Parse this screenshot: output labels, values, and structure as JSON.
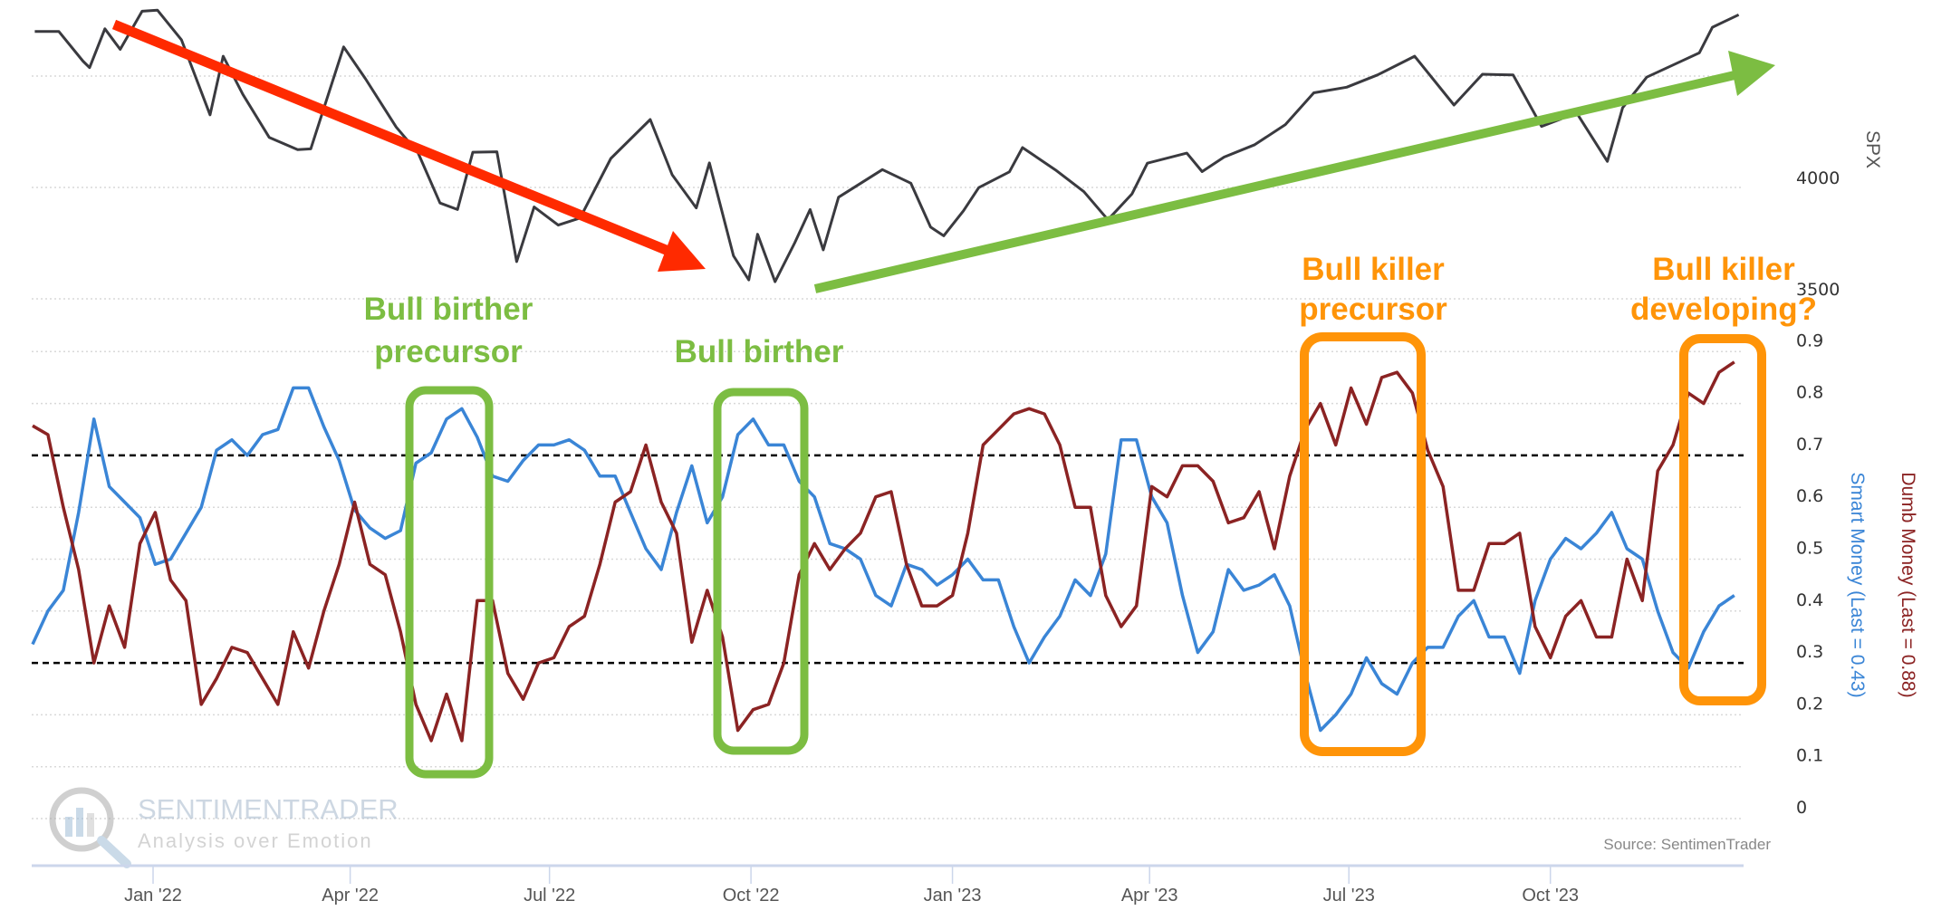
{
  "chart_data": [
    {
      "type": "line",
      "panel": "top",
      "ylabel": "SPX",
      "y_ticks": [
        {
          "value": 4000,
          "label": "4000"
        },
        {
          "value": 3500,
          "label": "3500"
        }
      ],
      "gridlines": [
        3500,
        4000,
        4500
      ],
      "series": [
        {
          "color": "#3a3a3f",
          "points": [
            [
              "2021-11-08",
              4700
            ],
            [
              "2021-11-19",
              4700
            ],
            [
              "2021-11-30",
              4567
            ],
            [
              "2021-12-03",
              4538
            ],
            [
              "2021-12-10",
              4712
            ],
            [
              "2021-12-17",
              4620
            ],
            [
              "2021-12-27",
              4791
            ],
            [
              "2022-01-03",
              4796
            ],
            [
              "2022-01-14",
              4662
            ],
            [
              "2022-01-27",
              4326
            ],
            [
              "2022-02-02",
              4589
            ],
            [
              "2022-02-11",
              4418
            ],
            [
              "2022-02-23",
              4225
            ],
            [
              "2022-03-08",
              4170
            ],
            [
              "2022-03-14",
              4173
            ],
            [
              "2022-03-29",
              4631
            ],
            [
              "2022-04-08",
              4488
            ],
            [
              "2022-04-22",
              4271
            ],
            [
              "2022-05-02",
              4155
            ],
            [
              "2022-05-12",
              3930
            ],
            [
              "2022-05-20",
              3901
            ],
            [
              "2022-05-27",
              4158
            ],
            [
              "2022-06-07",
              4160
            ],
            [
              "2022-06-16",
              3667
            ],
            [
              "2022-06-24",
              3912
            ],
            [
              "2022-07-05",
              3831
            ],
            [
              "2022-07-15",
              3863
            ],
            [
              "2022-07-29",
              4130
            ],
            [
              "2022-08-16",
              4305
            ],
            [
              "2022-08-26",
              4057
            ],
            [
              "2022-09-06",
              3908
            ],
            [
              "2022-09-12",
              4110
            ],
            [
              "2022-09-23",
              3693
            ],
            [
              "2022-09-30",
              3585
            ],
            [
              "2022-10-04",
              3790
            ],
            [
              "2022-10-12",
              3577
            ],
            [
              "2022-10-21",
              3752
            ],
            [
              "2022-10-28",
              3901
            ],
            [
              "2022-11-03",
              3720
            ],
            [
              "2022-11-10",
              3956
            ],
            [
              "2022-11-30",
              4080
            ],
            [
              "2022-12-13",
              4019
            ],
            [
              "2022-12-22",
              3822
            ],
            [
              "2022-12-28",
              3783
            ],
            [
              "2023-01-06",
              3895
            ],
            [
              "2023-01-13",
              3999
            ],
            [
              "2023-01-27",
              4070
            ],
            [
              "2023-02-02",
              4179
            ],
            [
              "2023-02-17",
              4079
            ],
            [
              "2023-03-02",
              3981
            ],
            [
              "2023-03-13",
              3855
            ],
            [
              "2023-03-24",
              3971
            ],
            [
              "2023-03-31",
              4109
            ],
            [
              "2023-04-18",
              4154
            ],
            [
              "2023-04-25",
              4071
            ],
            [
              "2023-05-05",
              4136
            ],
            [
              "2023-05-19",
              4192
            ],
            [
              "2023-06-02",
              4282
            ],
            [
              "2023-06-15",
              4425
            ],
            [
              "2023-06-30",
              4450
            ],
            [
              "2023-07-14",
              4505
            ],
            [
              "2023-07-31",
              4589
            ],
            [
              "2023-08-18",
              4370
            ],
            [
              "2023-08-31",
              4508
            ],
            [
              "2023-09-14",
              4505
            ],
            [
              "2023-09-27",
              4274
            ],
            [
              "2023-10-06",
              4308
            ],
            [
              "2023-10-12",
              4350
            ],
            [
              "2023-10-27",
              4117
            ],
            [
              "2023-11-03",
              4358
            ],
            [
              "2023-11-14",
              4495
            ],
            [
              "2023-11-30",
              4568
            ],
            [
              "2023-12-08",
              4604
            ],
            [
              "2023-12-14",
              4719
            ],
            [
              "2023-12-26",
              4775
            ]
          ]
        }
      ]
    },
    {
      "type": "line",
      "panel": "bottom",
      "y_ticks": [
        "0",
        "0.1",
        "0.2",
        "0.3",
        "0.4",
        "0.5",
        "0.6",
        "0.7",
        "0.8",
        "0.9"
      ],
      "ylim": [
        0,
        0.9
      ],
      "threshold_lines": [
        0.7,
        0.3
      ],
      "series": [
        {
          "name": "Smart Money (Last = 0.43)",
          "color": "#3a85d6",
          "start": "2021-11-07",
          "interval_days": 7,
          "values": [
            0.336,
            0.4,
            0.44,
            0.59,
            0.77,
            0.64,
            0.61,
            0.58,
            0.49,
            0.5,
            0.55,
            0.6,
            0.71,
            0.73,
            0.7,
            0.74,
            0.75,
            0.83,
            0.83,
            0.755,
            0.69,
            0.595,
            0.56,
            0.54,
            0.555,
            0.685,
            0.705,
            0.77,
            0.79,
            0.735,
            0.66,
            0.65,
            0.69,
            0.72,
            0.72,
            0.73,
            0.71,
            0.66,
            0.66,
            0.59,
            0.52,
            0.48,
            0.59,
            0.68,
            0.57,
            0.62,
            0.74,
            0.77,
            0.72,
            0.72,
            0.65,
            0.62,
            0.53,
            0.52,
            0.5,
            0.43,
            0.41,
            0.49,
            0.48,
            0.45,
            0.47,
            0.5,
            0.46,
            0.46,
            0.37,
            0.3,
            0.35,
            0.39,
            0.46,
            0.43,
            0.51,
            0.73,
            0.73,
            0.62,
            0.57,
            0.43,
            0.32,
            0.36,
            0.48,
            0.44,
            0.45,
            0.47,
            0.41,
            0.28,
            0.17,
            0.2,
            0.24,
            0.31,
            0.26,
            0.24,
            0.3,
            0.33,
            0.33,
            0.39,
            0.42,
            0.35,
            0.35,
            0.28,
            0.42,
            0.5,
            0.54,
            0.52,
            0.55,
            0.59,
            0.52,
            0.5,
            0.4,
            0.32,
            0.29,
            0.36,
            0.41,
            0.43
          ]
        },
        {
          "name": "Dumb Money (Last = 0.88)",
          "color": "#8b2323",
          "start": "2021-11-07",
          "interval_days": 7,
          "values": [
            0.757,
            0.74,
            0.6,
            0.48,
            0.3,
            0.41,
            0.33,
            0.53,
            0.59,
            0.46,
            0.42,
            0.22,
            0.27,
            0.33,
            0.32,
            0.27,
            0.22,
            0.36,
            0.29,
            0.4,
            0.49,
            0.61,
            0.49,
            0.47,
            0.36,
            0.22,
            0.15,
            0.24,
            0.15,
            0.42,
            0.42,
            0.28,
            0.23,
            0.3,
            0.31,
            0.37,
            0.39,
            0.49,
            0.61,
            0.63,
            0.72,
            0.61,
            0.55,
            0.34,
            0.44,
            0.35,
            0.17,
            0.21,
            0.22,
            0.3,
            0.47,
            0.53,
            0.48,
            0.52,
            0.55,
            0.62,
            0.63,
            0.49,
            0.41,
            0.41,
            0.43,
            0.55,
            0.72,
            0.75,
            0.78,
            0.79,
            0.78,
            0.72,
            0.6,
            0.6,
            0.43,
            0.37,
            0.41,
            0.64,
            0.62,
            0.68,
            0.68,
            0.65,
            0.57,
            0.58,
            0.63,
            0.52,
            0.66,
            0.75,
            0.8,
            0.72,
            0.83,
            0.76,
            0.85,
            0.86,
            0.82,
            0.71,
            0.64,
            0.44,
            0.44,
            0.53,
            0.53,
            0.55,
            0.37,
            0.31,
            0.39,
            0.42,
            0.35,
            0.35,
            0.5,
            0.42,
            0.67,
            0.72,
            0.82,
            0.8,
            0.86,
            0.88
          ]
        }
      ]
    }
  ],
  "x_ticks": [
    {
      "label": "Jan '22",
      "date": "2022-01-01"
    },
    {
      "label": "Apr '22",
      "date": "2022-04-01"
    },
    {
      "label": "Jul '22",
      "date": "2022-07-01"
    },
    {
      "label": "Oct '22",
      "date": "2022-10-01"
    },
    {
      "label": "Jan '23",
      "date": "2023-01-01"
    },
    {
      "label": "Apr '23",
      "date": "2023-04-01"
    },
    {
      "label": "Jul '23",
      "date": "2023-07-01"
    },
    {
      "label": "Oct '23",
      "date": "2023-10-01"
    }
  ],
  "annotations": {
    "bull_birther_precursor": [
      "Bull birther",
      "precursor"
    ],
    "bull_birther": "Bull birther",
    "bull_killer_precursor": [
      "Bull killer",
      "precursor"
    ],
    "bull_killer_developing": [
      "Bull killer",
      "developing?"
    ]
  },
  "colors": {
    "spx": "#3a3a3f",
    "smart": "#3a85d6",
    "dumb": "#8b2323",
    "green": "#7cbd42",
    "orange": "#ff9408",
    "red_arrow": "#ff2a00"
  },
  "source": "Source: SentimenTrader",
  "logo": {
    "name": "SENTIMENTRADER",
    "tagline": "Analysis over Emotion"
  }
}
